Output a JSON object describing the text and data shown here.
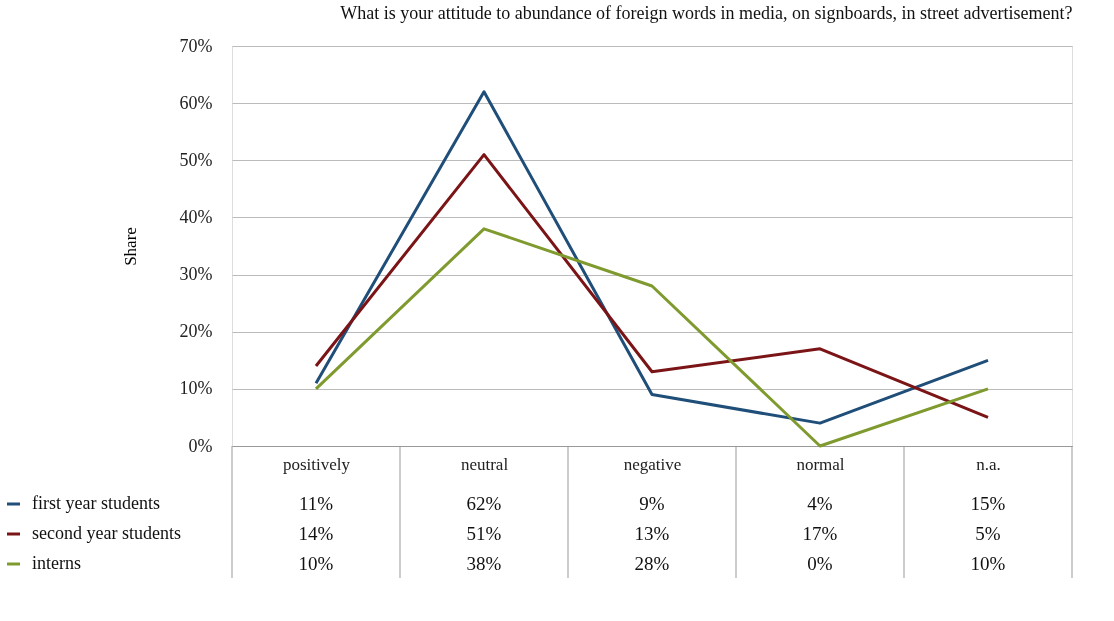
{
  "chart_data": {
    "type": "line",
    "title": "What is your attitude to abundance of foreign words in media, on signboards, in street advertisement?",
    "ylabel": "Share",
    "categories": [
      "positively",
      "neutral",
      "negative",
      "normal",
      "n.a."
    ],
    "series": [
      {
        "name": "first year students",
        "color": "#1f4e79",
        "values": [
          11,
          62,
          9,
          4,
          15
        ],
        "value_labels": [
          "11%",
          "62%",
          "9%",
          "4%",
          "15%"
        ]
      },
      {
        "name": "second year students",
        "color": "#7b1416",
        "values": [
          14,
          51,
          13,
          17,
          5
        ],
        "value_labels": [
          "14%",
          "51%",
          "13%",
          "17%",
          "5%"
        ]
      },
      {
        "name": "interns",
        "color": "#7f9a2e",
        "values": [
          10,
          38,
          28,
          0,
          10
        ],
        "value_labels": [
          "10%",
          "38%",
          "28%",
          "0%",
          "10%"
        ]
      }
    ],
    "ylim": [
      0,
      70
    ],
    "yticks": [
      {
        "value": 0,
        "label": "0%"
      },
      {
        "value": 10,
        "label": "10%"
      },
      {
        "value": 20,
        "label": "20%"
      },
      {
        "value": 30,
        "label": "30%"
      },
      {
        "value": 40,
        "label": "40%"
      },
      {
        "value": 50,
        "label": "50%"
      },
      {
        "value": 60,
        "label": "60%"
      },
      {
        "value": 70,
        "label": "70%"
      }
    ],
    "grid": "y",
    "legend": "bottom left",
    "marker": "none",
    "line_style": "solid"
  }
}
